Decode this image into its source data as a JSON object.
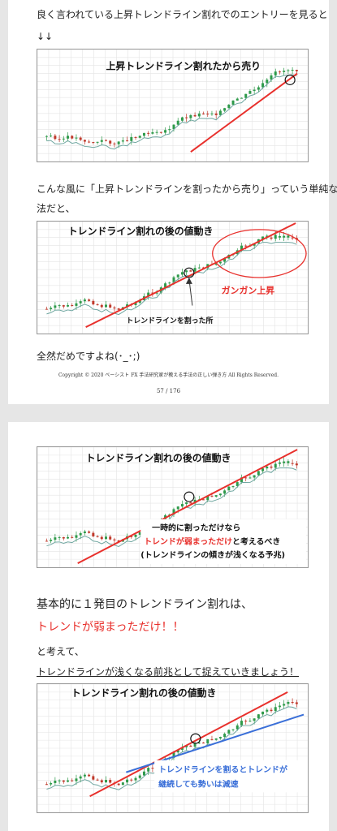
{
  "page1": {
    "intro_line1": "良く言われている上昇トレンドライン割れでのエントリーを見ると",
    "intro_arrows": "↓↓",
    "chart1_title": "上昇トレンドライン割れたから売り",
    "para_line1": "こんな風に「上昇トレンドラインを割ったから売り」っていう単純な方",
    "para_line2": "法だと、",
    "chart2_title": "トレンドライン割れの後の値動き",
    "chart2_label_up": "ガンガン上昇",
    "chart2_label_break": "トレンドラインを割った所",
    "conclusion": "全然だめですよね(･_･;)",
    "footer": "Copyright © 2020 ベーシスト FX 手法研究家が教える手法の正しい弾き方  All Rights Reserved.",
    "page_number": "57  /  176"
  },
  "page2": {
    "chart3_title": "トレンドライン割れの後の値動き",
    "chart3_note1": "一時的に割っただけなら",
    "chart3_note2": "トレンドが弱まっただけ",
    "chart3_note2b": "と考えるべき",
    "chart3_note3": "(トレンドラインの傾きが浅くなる予兆)",
    "heading1": "基本的に１発目のトレンドライン割れは、",
    "heading2": "トレンドが弱まっただけ！！",
    "line3": "と考えて、",
    "line4": "トレンドラインが浅くなる前兆として捉えていきましょう！",
    "chart4_title": "トレンドライン割れの後の値動き",
    "chart4_note1": "トレンドラインを割るとトレンドが",
    "chart4_note2": "継続しても勢いは減速"
  },
  "colors": {
    "accent_red": "#e8302c",
    "accent_blue": "#3a6fd8",
    "up_candle": "#2e9a4a",
    "down_candle": "#c0392b",
    "ma_line": "#6fa6a0"
  }
}
